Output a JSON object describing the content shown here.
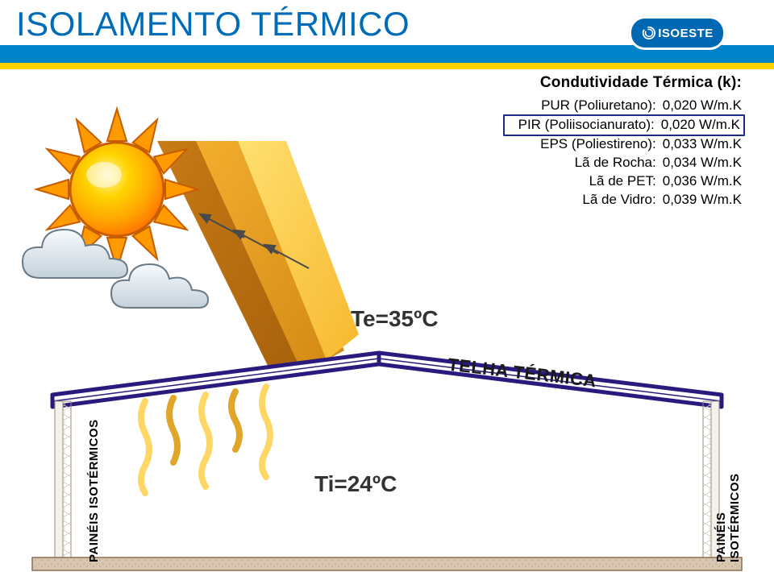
{
  "colors": {
    "title": "#006cb7",
    "bar_blue": "#0083c9",
    "bar_yellow": "#ffd100",
    "logo_bg": "#0068b3",
    "text": "#222222",
    "cond_box": "#1a2a8a",
    "roof_stroke": "#2a1a7d",
    "roof_fill_light": "#eaeaf6",
    "telha_text": "#1a1a1a",
    "te_ti_text": "#333333",
    "panel_text": "#222222",
    "sun_core": "#ffd400",
    "sun_mid": "#ffa500",
    "sun_outer": "#ff7b00",
    "sun_stroke": "#c75d00",
    "cloud_fill": "#e8eef2",
    "cloud_shadow": "#b9c6cf",
    "cloud_stroke": "#6a7a86",
    "ray_dark": "#c77a14",
    "ray_mid": "#e79b1f",
    "ray_light": "#ffc63b",
    "wave_light": "#ffd766",
    "wave_dark": "#e0a62a",
    "arrow": "#4a4a4a",
    "ground_fill": "#d9c6b0",
    "ground_stroke": "#8a6f53",
    "wall_fill": "#f4f1ec",
    "wall_hex": "#d7cfc3"
  },
  "header": {
    "title": "ISOLAMENTO TÉRMICO",
    "logo_text": "ISOESTE"
  },
  "conductivity": {
    "title": "Condutividade Térmica (k):",
    "rows": [
      {
        "label": "PUR (Poliuretano):",
        "value": "0,020 W/m.K",
        "boxed": false
      },
      {
        "label": "PIR (Poliisocianurato):",
        "value": "0,020 W/m.K",
        "boxed": true
      },
      {
        "label": "EPS (Poliestireno):",
        "value": "0,033 W/m.K",
        "boxed": false
      },
      {
        "label": "Lã de Rocha:",
        "value": "0,034 W/m.K",
        "boxed": false
      },
      {
        "label": "Lã de PET:",
        "value": "0,036 W/m.K",
        "boxed": false
      },
      {
        "label": "Lã de Vidro:",
        "value": "0,039 W/m.K",
        "boxed": false
      }
    ]
  },
  "labels": {
    "te": "Te=35ºC",
    "ti": "Ti=24ºC",
    "telha": "TELHA TÉRMICA",
    "paineis": "PAINÉIS ISOTÉRMICOS",
    "calor": "calor"
  }
}
